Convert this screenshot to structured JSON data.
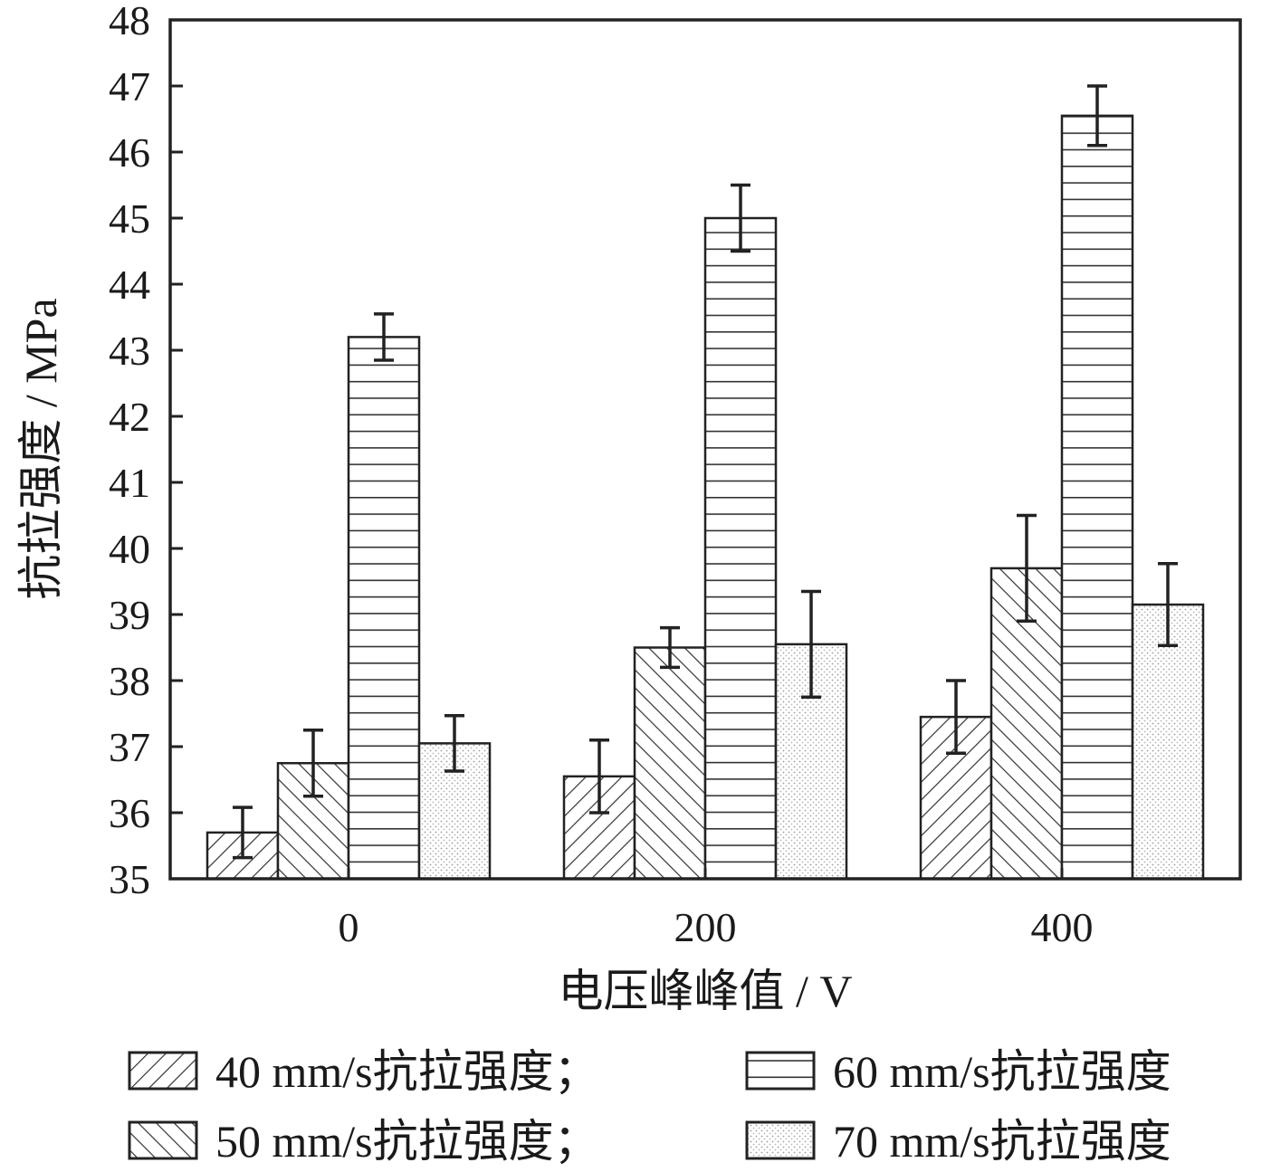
{
  "chart_data": {
    "type": "bar",
    "categories": [
      "0",
      "200",
      "400"
    ],
    "series": [
      {
        "name": "40 mm/s抗拉强度；",
        "values": [
          35.7,
          36.55,
          37.45
        ],
        "errors": [
          0.38,
          0.55,
          0.55
        ],
        "pattern": "backslash"
      },
      {
        "name": "50 mm/s抗拉强度；",
        "values": [
          36.75,
          38.5,
          39.7
        ],
        "errors": [
          0.5,
          0.3,
          0.8
        ],
        "pattern": "slash"
      },
      {
        "name": "60 mm/s抗拉强度",
        "values": [
          43.2,
          45.0,
          46.55
        ],
        "errors": [
          0.35,
          0.5,
          0.45
        ],
        "pattern": "horizontal"
      },
      {
        "name": "70 mm/s抗拉强度",
        "values": [
          37.05,
          38.55,
          39.15
        ],
        "errors": [
          0.42,
          0.8,
          0.62
        ],
        "pattern": "dots"
      }
    ],
    "xlabel": "电压峰峰值 / V",
    "ylabel": "抗拉强度 / MPa",
    "ylim": [
      35,
      48
    ],
    "yticks": [
      "35",
      "36",
      "37",
      "38",
      "39",
      "40",
      "41",
      "42",
      "43",
      "44",
      "45",
      "46",
      "47",
      "48"
    ],
    "grid": false,
    "legend_position": "bottom",
    "colors": {
      "bar_fill": "#ffffff",
      "stroke": "#222222",
      "dots": "#9a9a9a"
    }
  }
}
